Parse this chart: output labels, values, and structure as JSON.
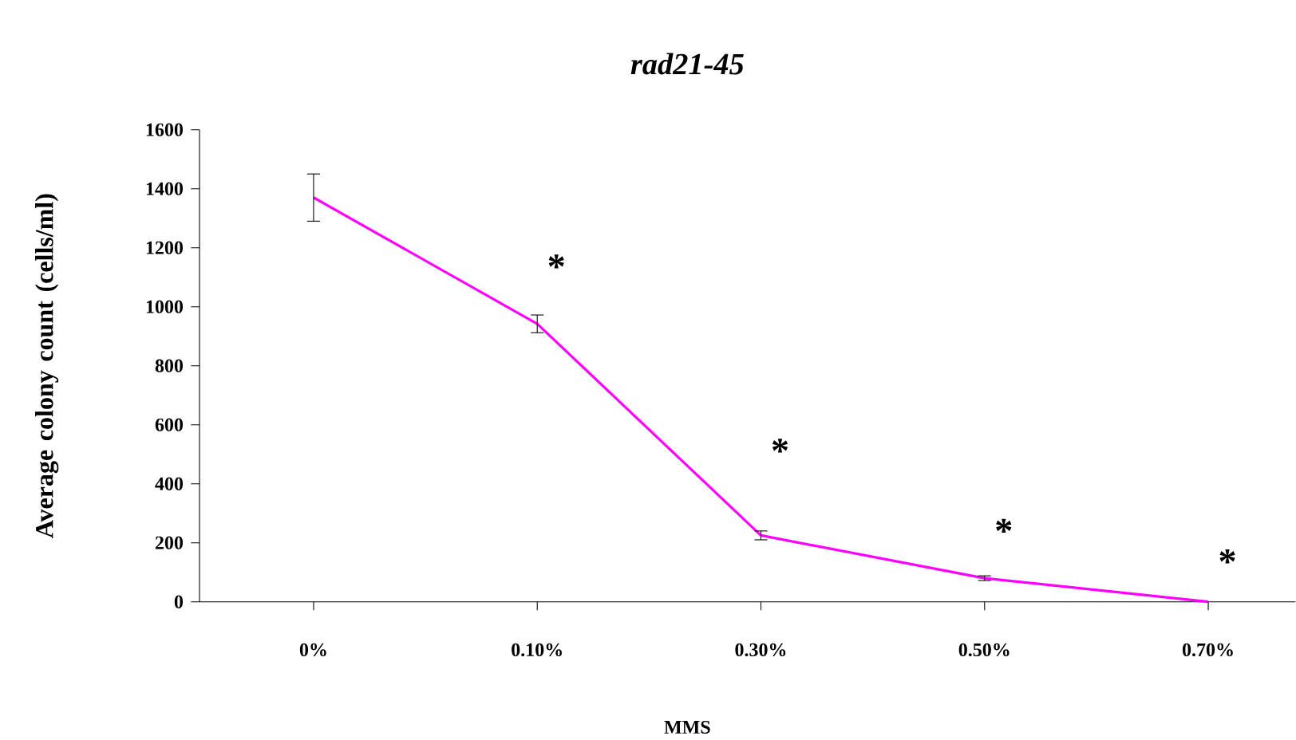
{
  "chart_data": {
    "type": "line",
    "title": "rad21-45",
    "xlabel": "MMS",
    "ylabel": "Average colony count (cells/ml)",
    "categories": [
      "0%",
      "0.10%",
      "0.30%",
      "0.50%",
      "0.70%"
    ],
    "series": [
      {
        "color": "#ff00ff",
        "values": [
          1370,
          942,
          225,
          80,
          0
        ],
        "errors": [
          80,
          30,
          15,
          8,
          null
        ]
      }
    ],
    "ylim": [
      0,
      1600
    ],
    "yticks": [
      0,
      200,
      400,
      600,
      800,
      1000,
      1200,
      1400,
      1600
    ],
    "grid": false,
    "marker": "none",
    "line_style": "solid",
    "annotations": [
      "*",
      "*",
      "*",
      "*"
    ]
  }
}
